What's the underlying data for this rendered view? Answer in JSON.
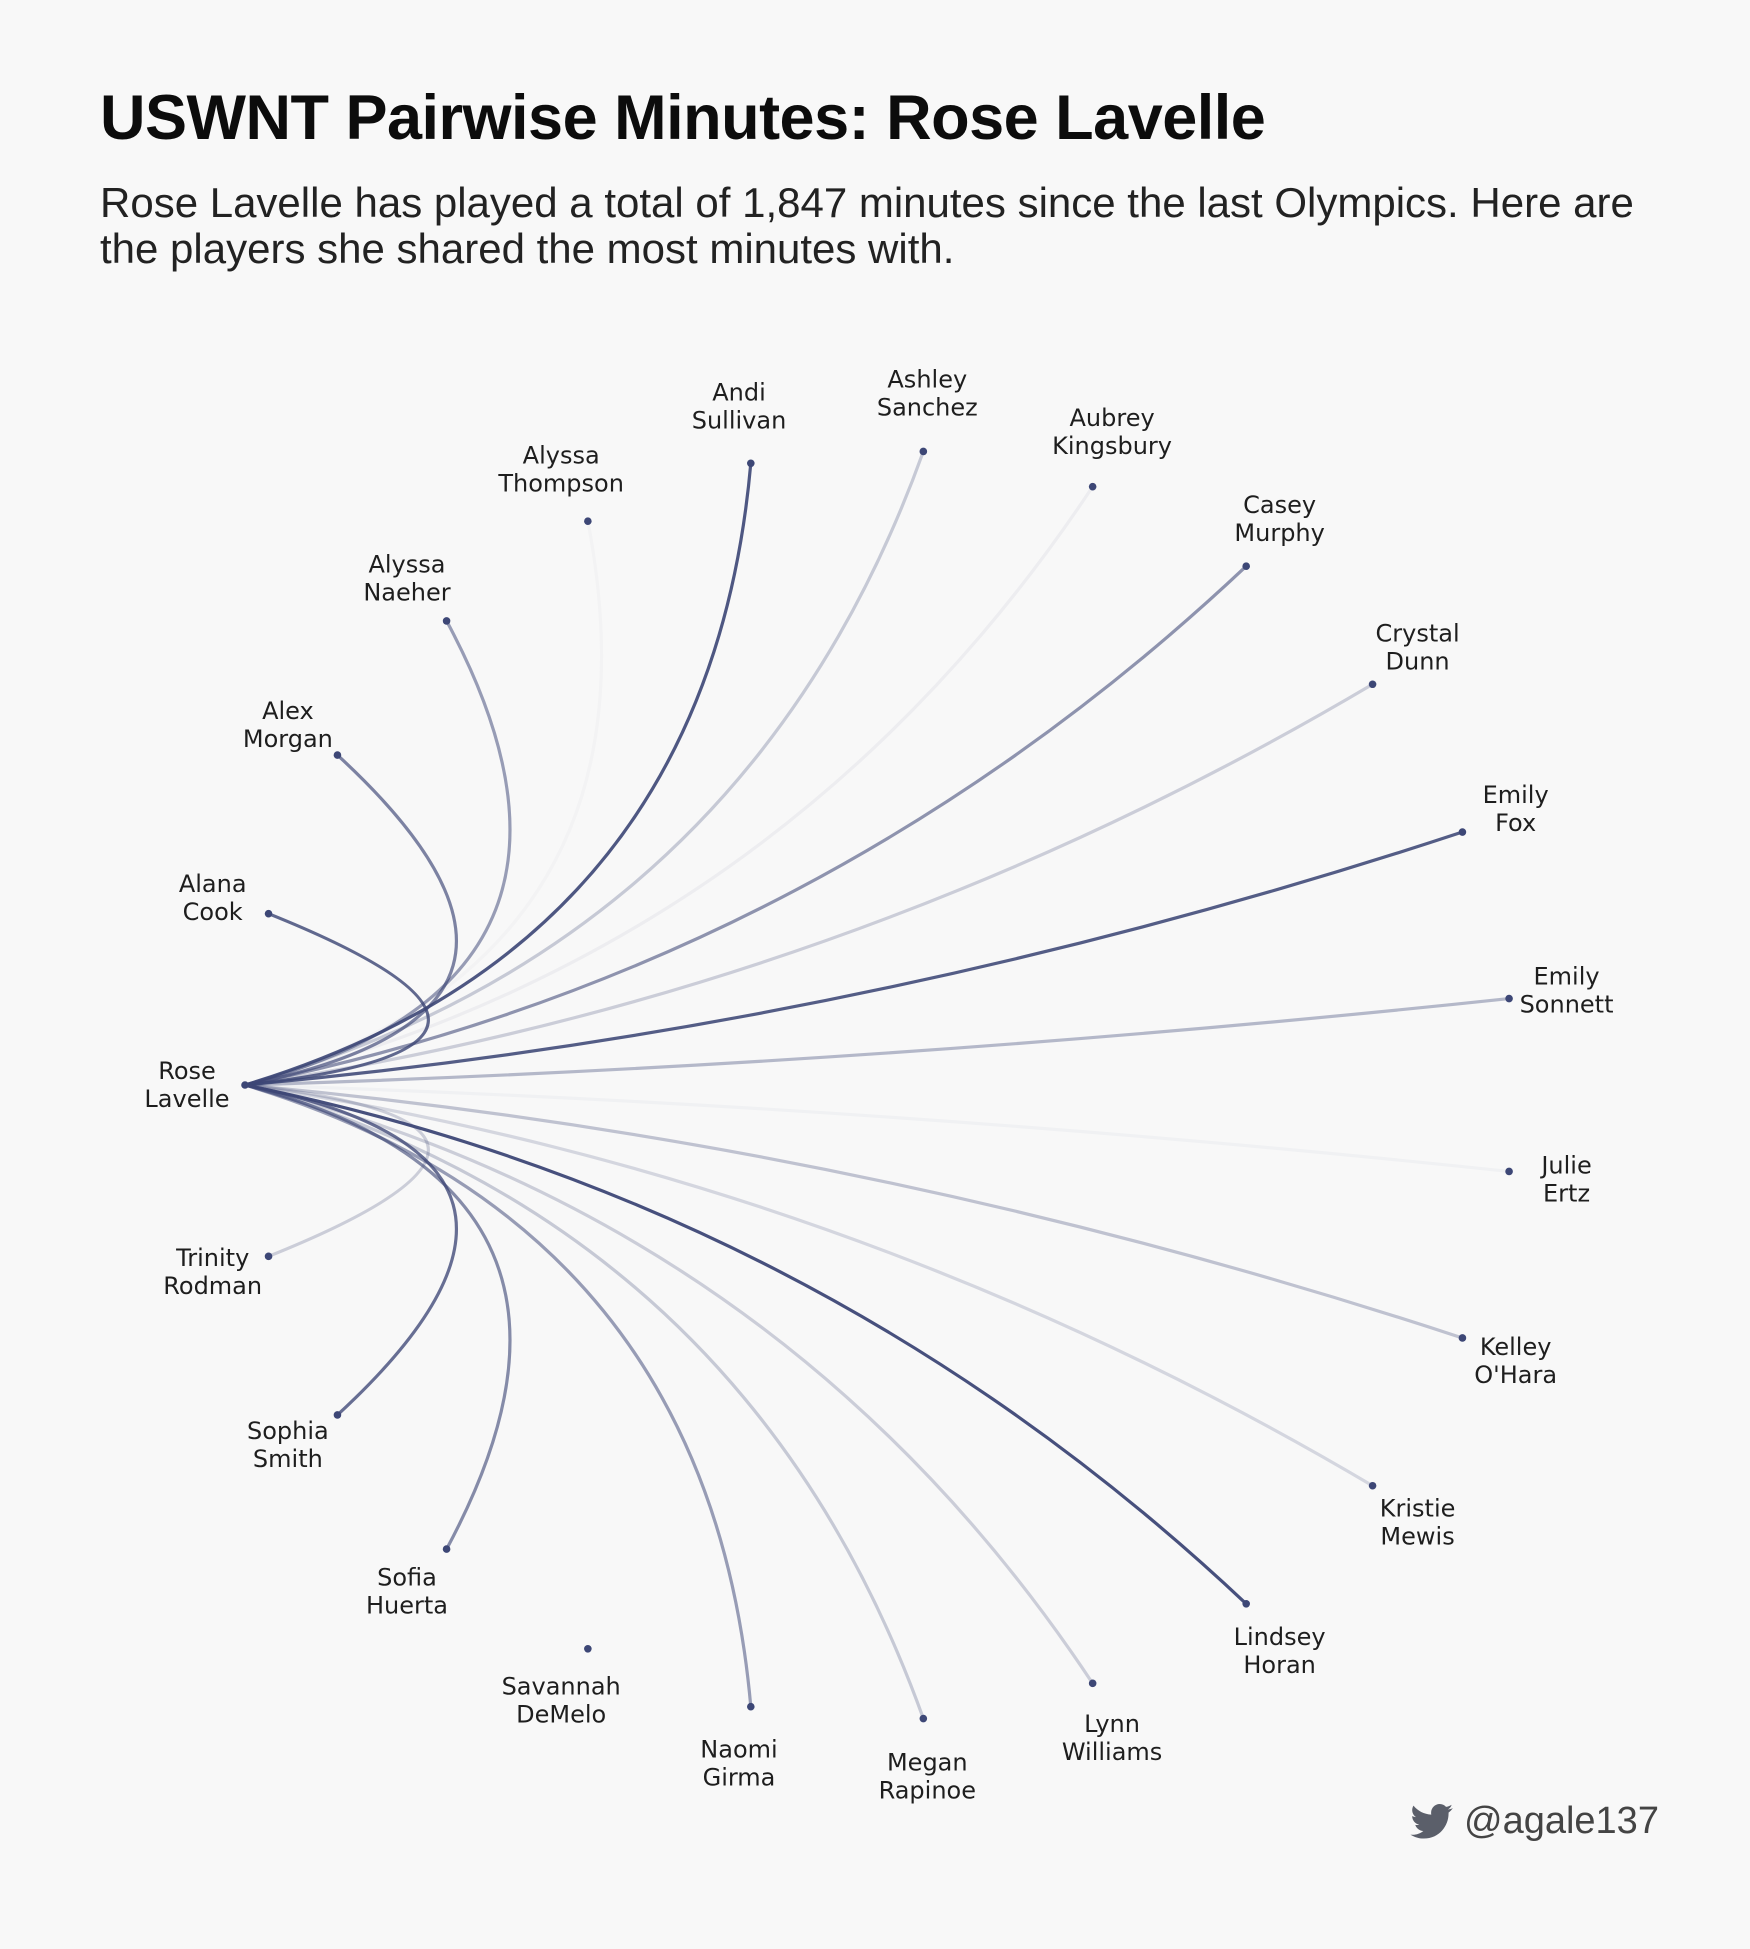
{
  "title": "USWNT Pairwise Minutes: Rose Lavelle",
  "subtitle": "Rose Lavelle has played a total of 1,847 minutes since the last Olympics. Here are the players she shared the most minutes with.",
  "credit": {
    "icon": "twitter-bird-icon",
    "handle": "@agale137"
  },
  "colors": {
    "link": "#3d4776",
    "background": "#f8f8f8",
    "text": "#1e1e1e"
  },
  "center_player": {
    "line1": "Rose",
    "line2": "Lavelle"
  },
  "players": [
    {
      "line1": "Alana",
      "line2": "Cook",
      "share": 0.86
    },
    {
      "line1": "Alex",
      "line2": "Morgan",
      "share": 0.7
    },
    {
      "line1": "Alyssa",
      "line2": "Naeher",
      "share": 0.55
    },
    {
      "line1": "Alyssa",
      "line2": "Thompson",
      "share": 0.03
    },
    {
      "line1": "Andi",
      "line2": "Sullivan",
      "share": 0.96
    },
    {
      "line1": "Ashley",
      "line2": "Sanchez",
      "share": 0.28
    },
    {
      "line1": "Aubrey",
      "line2": "Kingsbury",
      "share": 0.06
    },
    {
      "line1": "Casey",
      "line2": "Murphy",
      "share": 0.6
    },
    {
      "line1": "Crystal",
      "line2": "Dunn",
      "share": 0.25
    },
    {
      "line1": "Emily",
      "line2": "Fox",
      "share": 0.92
    },
    {
      "line1": "Emily",
      "line2": "Sonnett",
      "share": 0.38
    },
    {
      "line1": "Julie",
      "line2": "Ertz",
      "share": 0.04
    },
    {
      "line1": "Kelley",
      "line2": "O'Hara",
      "share": 0.32
    },
    {
      "line1": "Kristie",
      "line2": "Mewis",
      "share": 0.2
    },
    {
      "line1": "Lindsey",
      "line2": "Horan",
      "share": 1.0
    },
    {
      "line1": "Lynn",
      "line2": "Williams",
      "share": 0.25
    },
    {
      "line1": "Megan",
      "line2": "Rapinoe",
      "share": 0.28
    },
    {
      "line1": "Naomi",
      "line2": "Girma",
      "share": 0.55
    },
    {
      "line1": "Savannah",
      "line2": "DeMelo",
      "share": 0.0
    },
    {
      "line1": "Sofia",
      "line2": "Huerta",
      "share": 0.65
    },
    {
      "line1": "Sophia",
      "line2": "Smith",
      "share": 0.82
    },
    {
      "line1": "Trinity",
      "line2": "Rodman",
      "share": 0.25
    }
  ]
}
